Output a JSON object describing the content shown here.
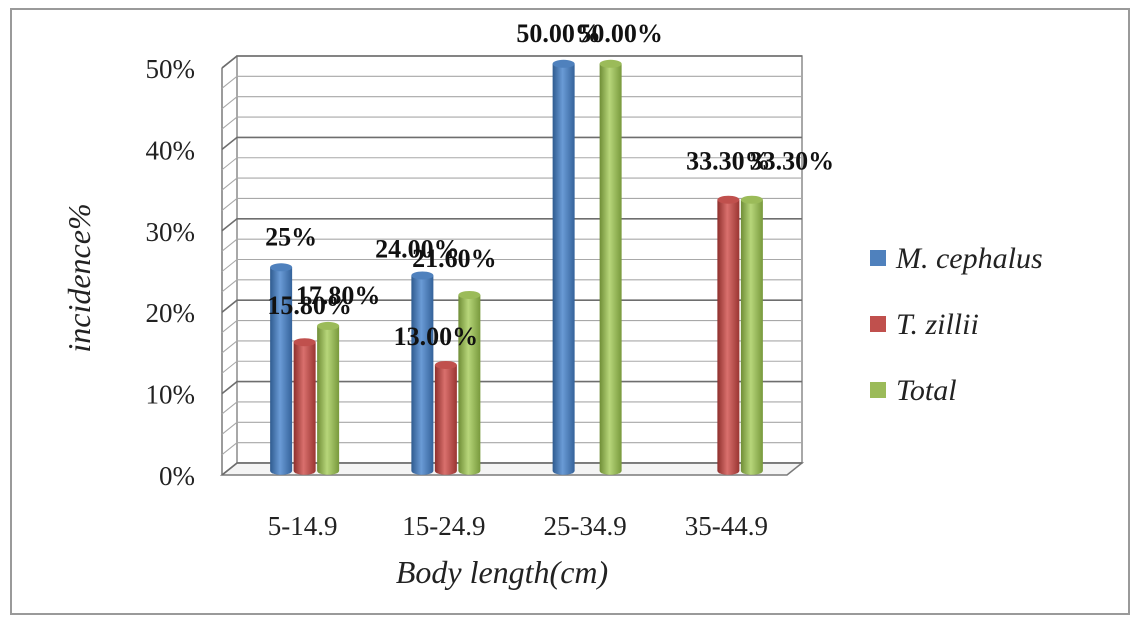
{
  "chart_data": {
    "type": "bar",
    "title": "",
    "xlabel": "Body length(cm)",
    "ylabel": "incidence%",
    "categories": [
      "5-14.9",
      "15-24.9",
      "25-34.9",
      "35-44.9"
    ],
    "ylim": [
      0,
      50
    ],
    "yticks": [
      "0%",
      "10%",
      "20%",
      "30%",
      "40%",
      "50%"
    ],
    "grid": true,
    "legend_position": "right",
    "series": [
      {
        "name": "M. cephalus",
        "color": "#4f81bd",
        "values": [
          25,
          24,
          50,
          null
        ],
        "labels": [
          "25%",
          "24.00%",
          "50.00%",
          ""
        ]
      },
      {
        "name": "T. zillii",
        "color": "#c0504d",
        "values": [
          15.8,
          13,
          null,
          33.3
        ],
        "labels": [
          "15.80%",
          "13.00%",
          "",
          "33.30%"
        ]
      },
      {
        "name": "Total",
        "color": "#9bbb59",
        "values": [
          17.8,
          21.6,
          50,
          33.3
        ],
        "labels": [
          "17.80%",
          "21.60%",
          "50.00%",
          "33.30%"
        ]
      }
    ]
  }
}
